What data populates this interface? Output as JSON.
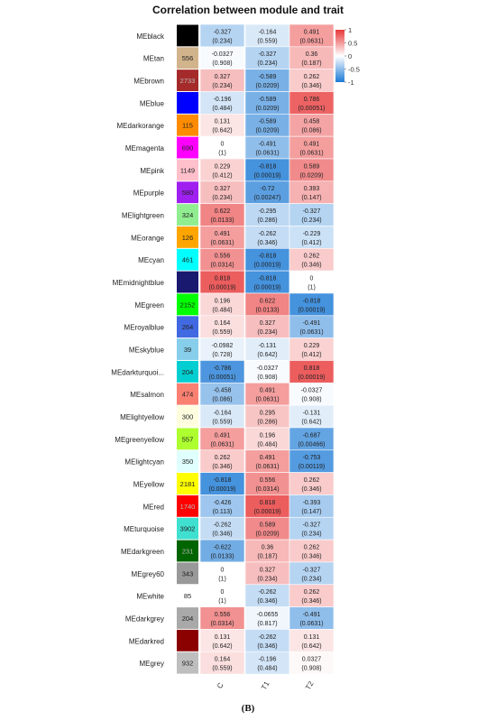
{
  "figure": {
    "title": "Correlation between module and trait",
    "caption": "(B)"
  },
  "chart_data": {
    "type": "heatmap",
    "title": "Correlation between module and trait",
    "columns": [
      "C",
      "T1",
      "T2"
    ],
    "legend": {
      "ticks": [
        1,
        0.5,
        0,
        -0.5,
        -1
      ],
      "range": [
        -1,
        1
      ],
      "colors": {
        "low": "#1c7ad6",
        "mid": "#ffffff",
        "high": "#e8393a"
      }
    },
    "modules": [
      {
        "name": "MEblack",
        "size": "",
        "color": "#000000",
        "cor": [
          "-0.327",
          "-0.164",
          "0.491"
        ],
        "p": [
          "(0.234)",
          "(0.559)",
          "(0.0631)"
        ]
      },
      {
        "name": "MEtan",
        "size": "556",
        "color": "#d2b48c",
        "cor": [
          "-0.0327",
          "-0.327",
          "0.36"
        ],
        "p": [
          "(0.908)",
          "(0.234)",
          "(0.187)"
        ]
      },
      {
        "name": "MEbrown",
        "size": "2733",
        "color": "#a52a2a",
        "cor": [
          "0.327",
          "-0.589",
          "0.262"
        ],
        "p": [
          "(0.234)",
          "(0.0209)",
          "(0.346)"
        ]
      },
      {
        "name": "MEblue",
        "size": "",
        "color": "#0000ff",
        "cor": [
          "-0.196",
          "-0.589",
          "0.786"
        ],
        "p": [
          "(0.484)",
          "(0.0209)",
          "(0.00051)"
        ]
      },
      {
        "name": "MEdarkorange",
        "size": "115",
        "color": "#ff8c00",
        "cor": [
          "0.131",
          "-0.589",
          "0.458"
        ],
        "p": [
          "(0.642)",
          "(0.0209)",
          "(0.086)"
        ]
      },
      {
        "name": "MEmagenta",
        "size": "690",
        "color": "#ff00ff",
        "cor": [
          "0",
          "-0.491",
          "0.491"
        ],
        "p": [
          "(1)",
          "(0.0631)",
          "(0.0631)"
        ]
      },
      {
        "name": "MEpink",
        "size": "1149",
        "color": "#ffc0cb",
        "cor": [
          "0.229",
          "-0.818",
          "0.589"
        ],
        "p": [
          "(0.412)",
          "(0.00019)",
          "(0.0209)"
        ]
      },
      {
        "name": "MEpurple",
        "size": "580",
        "color": "#a020f0",
        "cor": [
          "0.327",
          "-0.72",
          "0.393"
        ],
        "p": [
          "(0.234)",
          "(0.00247)",
          "(0.147)"
        ]
      },
      {
        "name": "MElightgreen",
        "size": "324",
        "color": "#90ee90",
        "cor": [
          "0.622",
          "-0.295",
          "-0.327"
        ],
        "p": [
          "(0.0133)",
          "(0.286)",
          "(0.234)"
        ]
      },
      {
        "name": "MEorange",
        "size": "126",
        "color": "#ffa500",
        "cor": [
          "0.491",
          "-0.262",
          "-0.229"
        ],
        "p": [
          "(0.0631)",
          "(0.346)",
          "(0.412)"
        ]
      },
      {
        "name": "MEcyan",
        "size": "461",
        "color": "#00ffff",
        "cor": [
          "0.556",
          "-0.818",
          "0.262"
        ],
        "p": [
          "(0.0314)",
          "(0.00019)",
          "(0.346)"
        ]
      },
      {
        "name": "MEmidnightblue",
        "size": "",
        "color": "#191970",
        "cor": [
          "0.818",
          "-0.818",
          "0"
        ],
        "p": [
          "(0.00019)",
          "(0.00019)",
          "(1)"
        ]
      },
      {
        "name": "MEgreen",
        "size": "2152",
        "color": "#00ff00",
        "cor": [
          "0.196",
          "0.622",
          "-0.818"
        ],
        "p": [
          "(0.484)",
          "(0.0133)",
          "(0.00019)"
        ]
      },
      {
        "name": "MEroyalblue",
        "size": "264",
        "color": "#4169e1",
        "cor": [
          "0.164",
          "0.327",
          "-0.491"
        ],
        "p": [
          "(0.559)",
          "(0.234)",
          "(0.0631)"
        ]
      },
      {
        "name": "MEskyblue",
        "size": "39",
        "color": "#87ceeb",
        "cor": [
          "-0.0982",
          "-0.131",
          "0.229"
        ],
        "p": [
          "(0.728)",
          "(0.642)",
          "(0.412)"
        ]
      },
      {
        "name": "MEdarkturquoi...",
        "size": "204",
        "color": "#00ced1",
        "cor": [
          "-0.786",
          "-0.0327",
          "0.818"
        ],
        "p": [
          "(0.00051)",
          "(0.908)",
          "(0.00019)"
        ]
      },
      {
        "name": "MEsalmon",
        "size": "474",
        "color": "#fa8072",
        "cor": [
          "-0.458",
          "0.491",
          "-0.0327"
        ],
        "p": [
          "(0.086)",
          "(0.0631)",
          "(0.908)"
        ]
      },
      {
        "name": "MElightyellow",
        "size": "300",
        "color": "#ffffe0",
        "cor": [
          "-0.164",
          "0.295",
          "-0.131"
        ],
        "p": [
          "(0.559)",
          "(0.286)",
          "(0.642)"
        ]
      },
      {
        "name": "MEgreenyellow",
        "size": "557",
        "color": "#adff2f",
        "cor": [
          "0.491",
          "0.196",
          "-0.687"
        ],
        "p": [
          "(0.0631)",
          "(0.484)",
          "(0.00466)"
        ]
      },
      {
        "name": "MElightcyan",
        "size": "350",
        "color": "#e0ffff",
        "cor": [
          "0.262",
          "0.491",
          "-0.753"
        ],
        "p": [
          "(0.346)",
          "(0.0631)",
          "(0.00119)"
        ]
      },
      {
        "name": "MEyellow",
        "size": "2181",
        "color": "#ffff00",
        "cor": [
          "-0.818",
          "0.556",
          "0.262"
        ],
        "p": [
          "(0.00019)",
          "(0.0314)",
          "(0.346)"
        ]
      },
      {
        "name": "MEred",
        "size": "1740",
        "color": "#ff0000",
        "cor": [
          "-0.426",
          "0.818",
          "-0.393"
        ],
        "p": [
          "(0.113)",
          "(0.00019)",
          "(0.147)"
        ]
      },
      {
        "name": "MEturquoise",
        "size": "3902",
        "color": "#40e0d0",
        "cor": [
          "-0.262",
          "0.589",
          "-0.327"
        ],
        "p": [
          "(0.346)",
          "(0.0209)",
          "(0.234)"
        ]
      },
      {
        "name": "MEdarkgreen",
        "size": "231",
        "color": "#006400",
        "cor": [
          "-0.622",
          "0.36",
          "0.262"
        ],
        "p": [
          "(0.0133)",
          "(0.187)",
          "(0.346)"
        ]
      },
      {
        "name": "MEgrey60",
        "size": "343",
        "color": "#999999",
        "cor": [
          "0",
          "0.327",
          "-0.327"
        ],
        "p": [
          "(1)",
          "(0.234)",
          "(0.234)"
        ]
      },
      {
        "name": "MEwhite",
        "size": "85",
        "color": "#ffffff",
        "cor": [
          "0",
          "-0.262",
          "0.262"
        ],
        "p": [
          "(1)",
          "(0.346)",
          "(0.346)"
        ]
      },
      {
        "name": "MEdarkgrey",
        "size": "204",
        "color": "#a9a9a9",
        "cor": [
          "0.556",
          "-0.0655",
          "-0.491"
        ],
        "p": [
          "(0.0314)",
          "(0.817)",
          "(0.0631)"
        ]
      },
      {
        "name": "MEdarkred",
        "size": "",
        "color": "#8b0000",
        "cor": [
          "0.131",
          "-0.262",
          "0.131"
        ],
        "p": [
          "(0.642)",
          "(0.346)",
          "(0.642)"
        ]
      },
      {
        "name": "MEgrey",
        "size": "932",
        "color": "#bebebe",
        "cor": [
          "0.164",
          "-0.196",
          "0.0327"
        ],
        "p": [
          "(0.559)",
          "(0.484)",
          "(0.908)"
        ]
      }
    ]
  }
}
